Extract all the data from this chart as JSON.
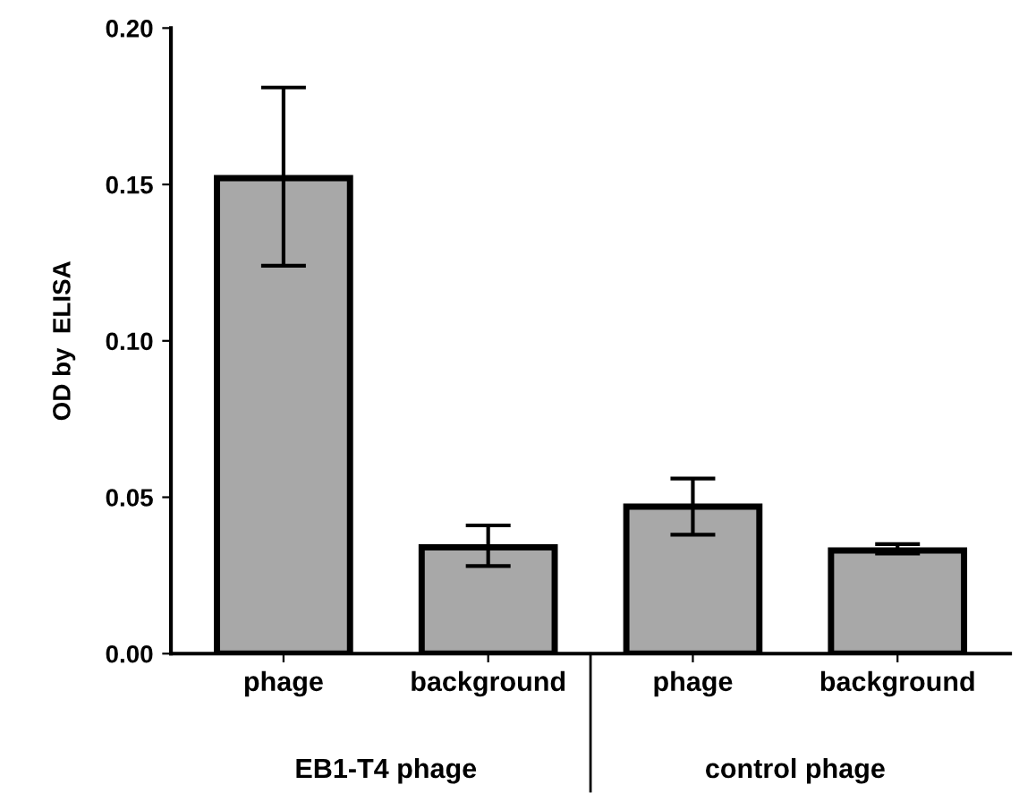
{
  "chart_data": {
    "type": "bar",
    "ylabel": "OD by  ELISA",
    "categories": [
      "phage",
      "background",
      "phage",
      "background"
    ],
    "values": [
      0.152,
      0.034,
      0.047,
      0.033
    ],
    "errors": [
      [
        0.124,
        0.181
      ],
      [
        0.028,
        0.041
      ],
      [
        0.038,
        0.056
      ],
      [
        0.032,
        0.035
      ]
    ],
    "color": "#a8a8a8",
    "ylim": [
      0,
      0.2
    ],
    "yticks": [
      {
        "value": 0,
        "label": "0.00"
      },
      {
        "value": 0.05,
        "label": "0.05"
      },
      {
        "value": 0.1,
        "label": "0.10"
      },
      {
        "value": 0.15,
        "label": "0.15"
      },
      {
        "value": 0.2,
        "label": "0.20"
      }
    ],
    "annotations": [
      "EB1-T4 phage",
      "control phage"
    ],
    "grid": false,
    "legend": false
  }
}
